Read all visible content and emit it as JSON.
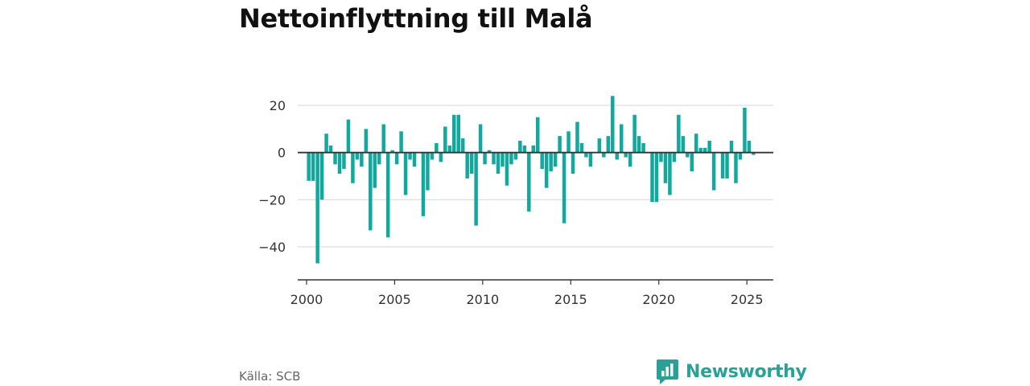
{
  "title": "Nettoinflyttning till Malå",
  "source": "Källa: SCB",
  "brand": {
    "name": "Newsworthy",
    "icon": "bar-chart-icon",
    "color": "#2aa198"
  },
  "colors": {
    "bar": "#12a89d",
    "grid": "#d9d9d9",
    "zero_line": "#333333",
    "axis": "#333333"
  },
  "chart_data": {
    "type": "bar",
    "frequency": "quarterly",
    "x_start": "2000-01",
    "xlim": [
      "1999-07",
      "2026-07"
    ],
    "ylim": [
      -54,
      34
    ],
    "grid": true,
    "xticks": [
      "2000",
      "2005",
      "2010",
      "2015",
      "2020",
      "2025"
    ],
    "yticks": [
      20,
      0,
      -20,
      -40
    ],
    "ytick_labels": [
      "20",
      "0",
      "−20",
      "−40"
    ],
    "values": [
      -12,
      -12,
      -47,
      -20,
      8,
      3,
      -5,
      -9,
      -7,
      14,
      -13,
      -3,
      -6,
      10,
      -33,
      -15,
      -5,
      12,
      -36,
      1,
      -5,
      9,
      -18,
      -3,
      -6,
      0,
      -27,
      -16,
      -3,
      4,
      -4,
      11,
      3,
      16,
      16,
      6,
      -11,
      -9,
      -31,
      12,
      -5,
      1,
      -5,
      -9,
      -6,
      -14,
      -5,
      -3,
      5,
      3,
      -25,
      3,
      15,
      -7,
      -15,
      -8,
      -6,
      7,
      -30,
      9,
      -9,
      13,
      4,
      -2,
      -6,
      0,
      6,
      -2,
      7,
      24,
      -3,
      12,
      -2,
      -6,
      16,
      7,
      4,
      0,
      -21,
      -21,
      -4,
      -13,
      -18,
      -4,
      16,
      7,
      -2,
      -8,
      8,
      2,
      2,
      5,
      -16,
      0,
      -11,
      -11,
      5,
      -13,
      -3,
      19,
      5,
      -1
    ]
  }
}
